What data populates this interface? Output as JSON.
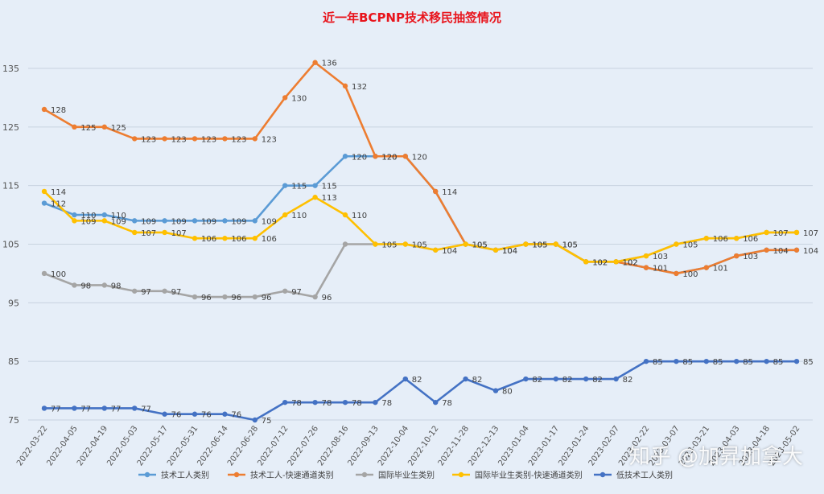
{
  "chart_data": {
    "type": "line",
    "title": "近一年BCPNP技术移民抽签情况",
    "xlabel": "",
    "ylabel": "",
    "ylim": [
      75,
      135
    ],
    "yticks": [
      75,
      85,
      95,
      105,
      115,
      125,
      135
    ],
    "grid": true,
    "legend_position": "bottom",
    "categories": [
      "2022-03-22",
      "2022-04-05",
      "2022-04-19",
      "2022-05-03",
      "2022-05-17",
      "2022-05-31",
      "2022-06-14",
      "2022-06-28",
      "2022-07-12",
      "2022-07-26",
      "2022-08-16",
      "2022-09-13",
      "2022-10-04",
      "2022-10-12",
      "2022-11-28",
      "2022-12-13",
      "2023-01-04",
      "2023-01-17",
      "2023-01-24",
      "2023-02-07",
      "2023-02-22",
      "2023-03-07",
      "2023-03-21",
      "2023-04-03",
      "2023-04-18",
      "2023-05-02"
    ],
    "series": [
      {
        "name": "技术工人类别",
        "color": "#5b9bd5",
        "values": [
          112,
          110,
          110,
          109,
          109,
          109,
          109,
          109,
          115,
          115,
          120,
          120,
          120,
          114,
          105,
          104,
          105,
          105,
          102,
          102,
          101,
          100,
          101,
          103,
          104,
          104
        ]
      },
      {
        "name": "技术工人-快速通道类别",
        "color": "#ed7d31",
        "values": [
          128,
          125,
          125,
          123,
          123,
          123,
          123,
          123,
          130,
          136,
          132,
          120,
          120,
          114,
          105,
          104,
          105,
          105,
          102,
          102,
          101,
          100,
          101,
          103,
          104,
          104
        ]
      },
      {
        "name": "国际毕业生类别",
        "color": "#a5a5a5",
        "values": [
          100,
          98,
          98,
          97,
          97,
          96,
          96,
          96,
          97,
          96,
          105,
          105,
          105,
          104,
          105,
          104,
          105,
          105,
          102,
          102,
          103,
          105,
          106,
          106,
          107,
          107
        ]
      },
      {
        "name": "国际毕业生类别-快速通道类别",
        "color": "#ffc000",
        "values": [
          114,
          109,
          109,
          107,
          107,
          106,
          106,
          106,
          110,
          113,
          110,
          105,
          105,
          104,
          105,
          104,
          105,
          105,
          102,
          102,
          103,
          105,
          106,
          106,
          107,
          107
        ]
      },
      {
        "name": "低技术工人类别",
        "color": "#4472c4",
        "values": [
          77,
          77,
          77,
          77,
          76,
          76,
          76,
          75,
          78,
          78,
          78,
          78,
          82,
          78,
          82,
          80,
          82,
          82,
          82,
          82,
          85,
          85,
          85,
          85,
          85,
          85
        ]
      }
    ],
    "labels": [
      {
        "series": 0,
        "values": [
          112,
          110,
          110,
          109,
          109,
          109,
          109,
          109,
          115,
          115,
          120,
          120,
          null,
          null,
          null,
          null,
          null,
          null,
          null,
          null,
          null,
          null,
          null,
          null,
          null,
          null
        ]
      },
      {
        "series": 1,
        "values": [
          128,
          125,
          125,
          123,
          123,
          123,
          123,
          123,
          130,
          136,
          132,
          120,
          120,
          114,
          105,
          104,
          105,
          105,
          102,
          102,
          101,
          100,
          101,
          103,
          104,
          104
        ]
      },
      {
        "series": 2,
        "values": [
          100,
          98,
          98,
          97,
          97,
          96,
          96,
          96,
          97,
          96,
          null,
          null,
          null,
          null,
          null,
          null,
          null,
          null,
          null,
          null,
          null,
          null,
          null,
          null,
          null,
          null
        ]
      },
      {
        "series": 3,
        "values": [
          114,
          109,
          109,
          107,
          107,
          106,
          106,
          106,
          110,
          113,
          110,
          105,
          105,
          104,
          105,
          104,
          105,
          105,
          102,
          102,
          103,
          105,
          106,
          106,
          107,
          107
        ]
      },
      {
        "series": 4,
        "values": [
          77,
          77,
          77,
          77,
          76,
          76,
          76,
          75,
          78,
          78,
          78,
          78,
          82,
          78,
          82,
          80,
          82,
          82,
          82,
          82,
          85,
          85,
          85,
          85,
          85,
          85
        ]
      }
    ]
  },
  "watermark": "知乎 @加昇加拿大"
}
